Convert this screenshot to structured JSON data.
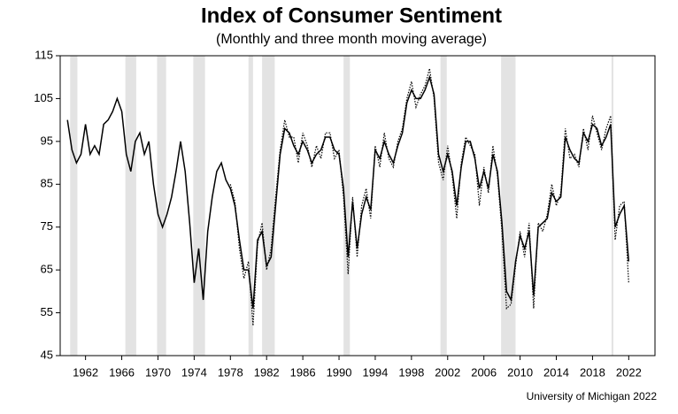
{
  "chart_data": {
    "type": "line",
    "title": "Index of Consumer Sentiment",
    "subtitle": "(Monthly and three month moving average)",
    "source": "University of Michigan 2022",
    "x": [
      1960,
      1960.5,
      1961,
      1961.5,
      1962,
      1962.5,
      1963,
      1963.5,
      1964,
      1964.5,
      1965,
      1965.5,
      1966,
      1966.5,
      1967,
      1967.5,
      1968,
      1968.5,
      1969,
      1969.5,
      1970,
      1970.5,
      1971,
      1971.5,
      1972,
      1972.5,
      1973,
      1973.5,
      1974,
      1974.5,
      1975,
      1975.5,
      1976,
      1976.5,
      1977,
      1977.5,
      1978,
      1978.5,
      1979,
      1979.5,
      1980,
      1980.5,
      1981,
      1981.5,
      1982,
      1982.5,
      1983,
      1983.5,
      1984,
      1984.5,
      1985,
      1985.5,
      1986,
      1986.5,
      1987,
      1987.5,
      1988,
      1988.5,
      1989,
      1989.5,
      1990,
      1990.5,
      1991,
      1991.5,
      1992,
      1992.5,
      1993,
      1993.5,
      1994,
      1994.5,
      1995,
      1995.5,
      1996,
      1996.5,
      1997,
      1997.5,
      1998,
      1998.5,
      1999,
      1999.5,
      2000,
      2000.5,
      2001,
      2001.5,
      2002,
      2002.5,
      2003,
      2003.5,
      2004,
      2004.5,
      2005,
      2005.5,
      2006,
      2006.5,
      2007,
      2007.5,
      2008,
      2008.5,
      2009,
      2009.5,
      2010,
      2010.5,
      2011,
      2011.5,
      2012,
      2012.5,
      2013,
      2013.5,
      2014,
      2014.5,
      2015,
      2015.5,
      2016,
      2016.5,
      2017,
      2017.5,
      2018,
      2018.5,
      2019,
      2019.5,
      2020,
      2020.5,
      2021,
      2021.5,
      2022
    ],
    "series": [
      {
        "color": "#000000",
        "dash": "solid",
        "values": [
          100,
          93,
          90,
          92,
          99,
          92,
          94,
          92,
          99,
          100,
          102,
          105,
          102,
          92,
          88,
          95,
          97,
          92,
          95,
          85,
          78,
          75,
          78,
          82,
          88,
          95,
          88,
          76,
          62,
          70,
          58,
          74,
          82,
          88,
          90,
          86,
          84,
          80,
          72,
          65,
          65,
          56,
          72,
          74,
          66,
          68,
          80,
          92,
          98,
          97,
          94,
          92,
          95,
          93,
          90,
          92,
          93,
          96,
          96,
          93,
          92,
          84,
          68,
          81,
          70,
          78,
          82,
          79,
          93,
          91,
          95,
          92,
          90,
          94,
          97,
          104,
          107,
          105,
          105,
          107,
          110,
          106,
          92,
          88,
          92,
          88,
          80,
          89,
          95,
          95,
          91,
          84,
          88,
          84,
          92,
          88,
          76,
          60,
          58,
          67,
          73,
          70,
          74,
          59,
          75,
          76,
          77,
          83,
          81,
          82,
          96,
          93,
          91,
          90,
          97,
          95,
          99,
          98,
          94,
          96,
          99,
          75,
          78,
          80,
          67
        ]
      },
      {
        "color": "#000000",
        "dash": "dotted",
        "values": [
          null,
          null,
          null,
          null,
          null,
          null,
          null,
          null,
          null,
          null,
          null,
          null,
          null,
          null,
          null,
          null,
          null,
          null,
          null,
          null,
          null,
          null,
          null,
          null,
          null,
          null,
          null,
          null,
          null,
          null,
          null,
          null,
          null,
          null,
          null,
          null,
          85,
          81,
          70,
          63,
          67,
          52,
          71,
          76,
          65,
          70,
          82,
          93,
          100,
          96,
          96,
          90,
          97,
          94,
          89,
          94,
          91,
          97,
          97,
          91,
          93,
          82,
          64,
          82,
          68,
          80,
          84,
          77,
          94,
          89,
          97,
          91,
          89,
          95,
          98,
          105,
          109,
          103,
          106,
          108,
          112,
          105,
          90,
          86,
          94,
          87,
          77,
          90,
          96,
          94,
          92,
          80,
          89,
          83,
          94,
          87,
          74,
          56,
          57,
          66,
          74,
          68,
          76,
          56,
          76,
          74,
          78,
          85,
          80,
          83,
          98,
          91,
          92,
          89,
          98,
          93,
          101,
          97,
          93,
          98,
          101,
          72,
          80,
          81,
          62
        ]
      }
    ],
    "shaded_periods": [
      [
        1960.3,
        1961.1
      ],
      [
        1966.4,
        1967.6
      ],
      [
        1969.9,
        1970.9
      ],
      [
        1973.9,
        1975.2
      ],
      [
        1980.0,
        1980.5
      ],
      [
        1981.5,
        1982.9
      ],
      [
        1990.5,
        1991.2
      ],
      [
        2001.2,
        2001.9
      ],
      [
        2007.9,
        2009.5
      ],
      [
        2020.1,
        2020.3
      ]
    ],
    "shade_color": "#e3e3e3",
    "xlim": [
      1959.2,
      2024.9
    ],
    "xticks": [
      1962,
      1966,
      1970,
      1974,
      1978,
      1982,
      1986,
      1990,
      1994,
      1998,
      2002,
      2006,
      2010,
      2014,
      2018,
      2022
    ],
    "ylim": [
      45,
      115
    ],
    "yticks": [
      45,
      55,
      65,
      75,
      85,
      95,
      105,
      115
    ]
  }
}
